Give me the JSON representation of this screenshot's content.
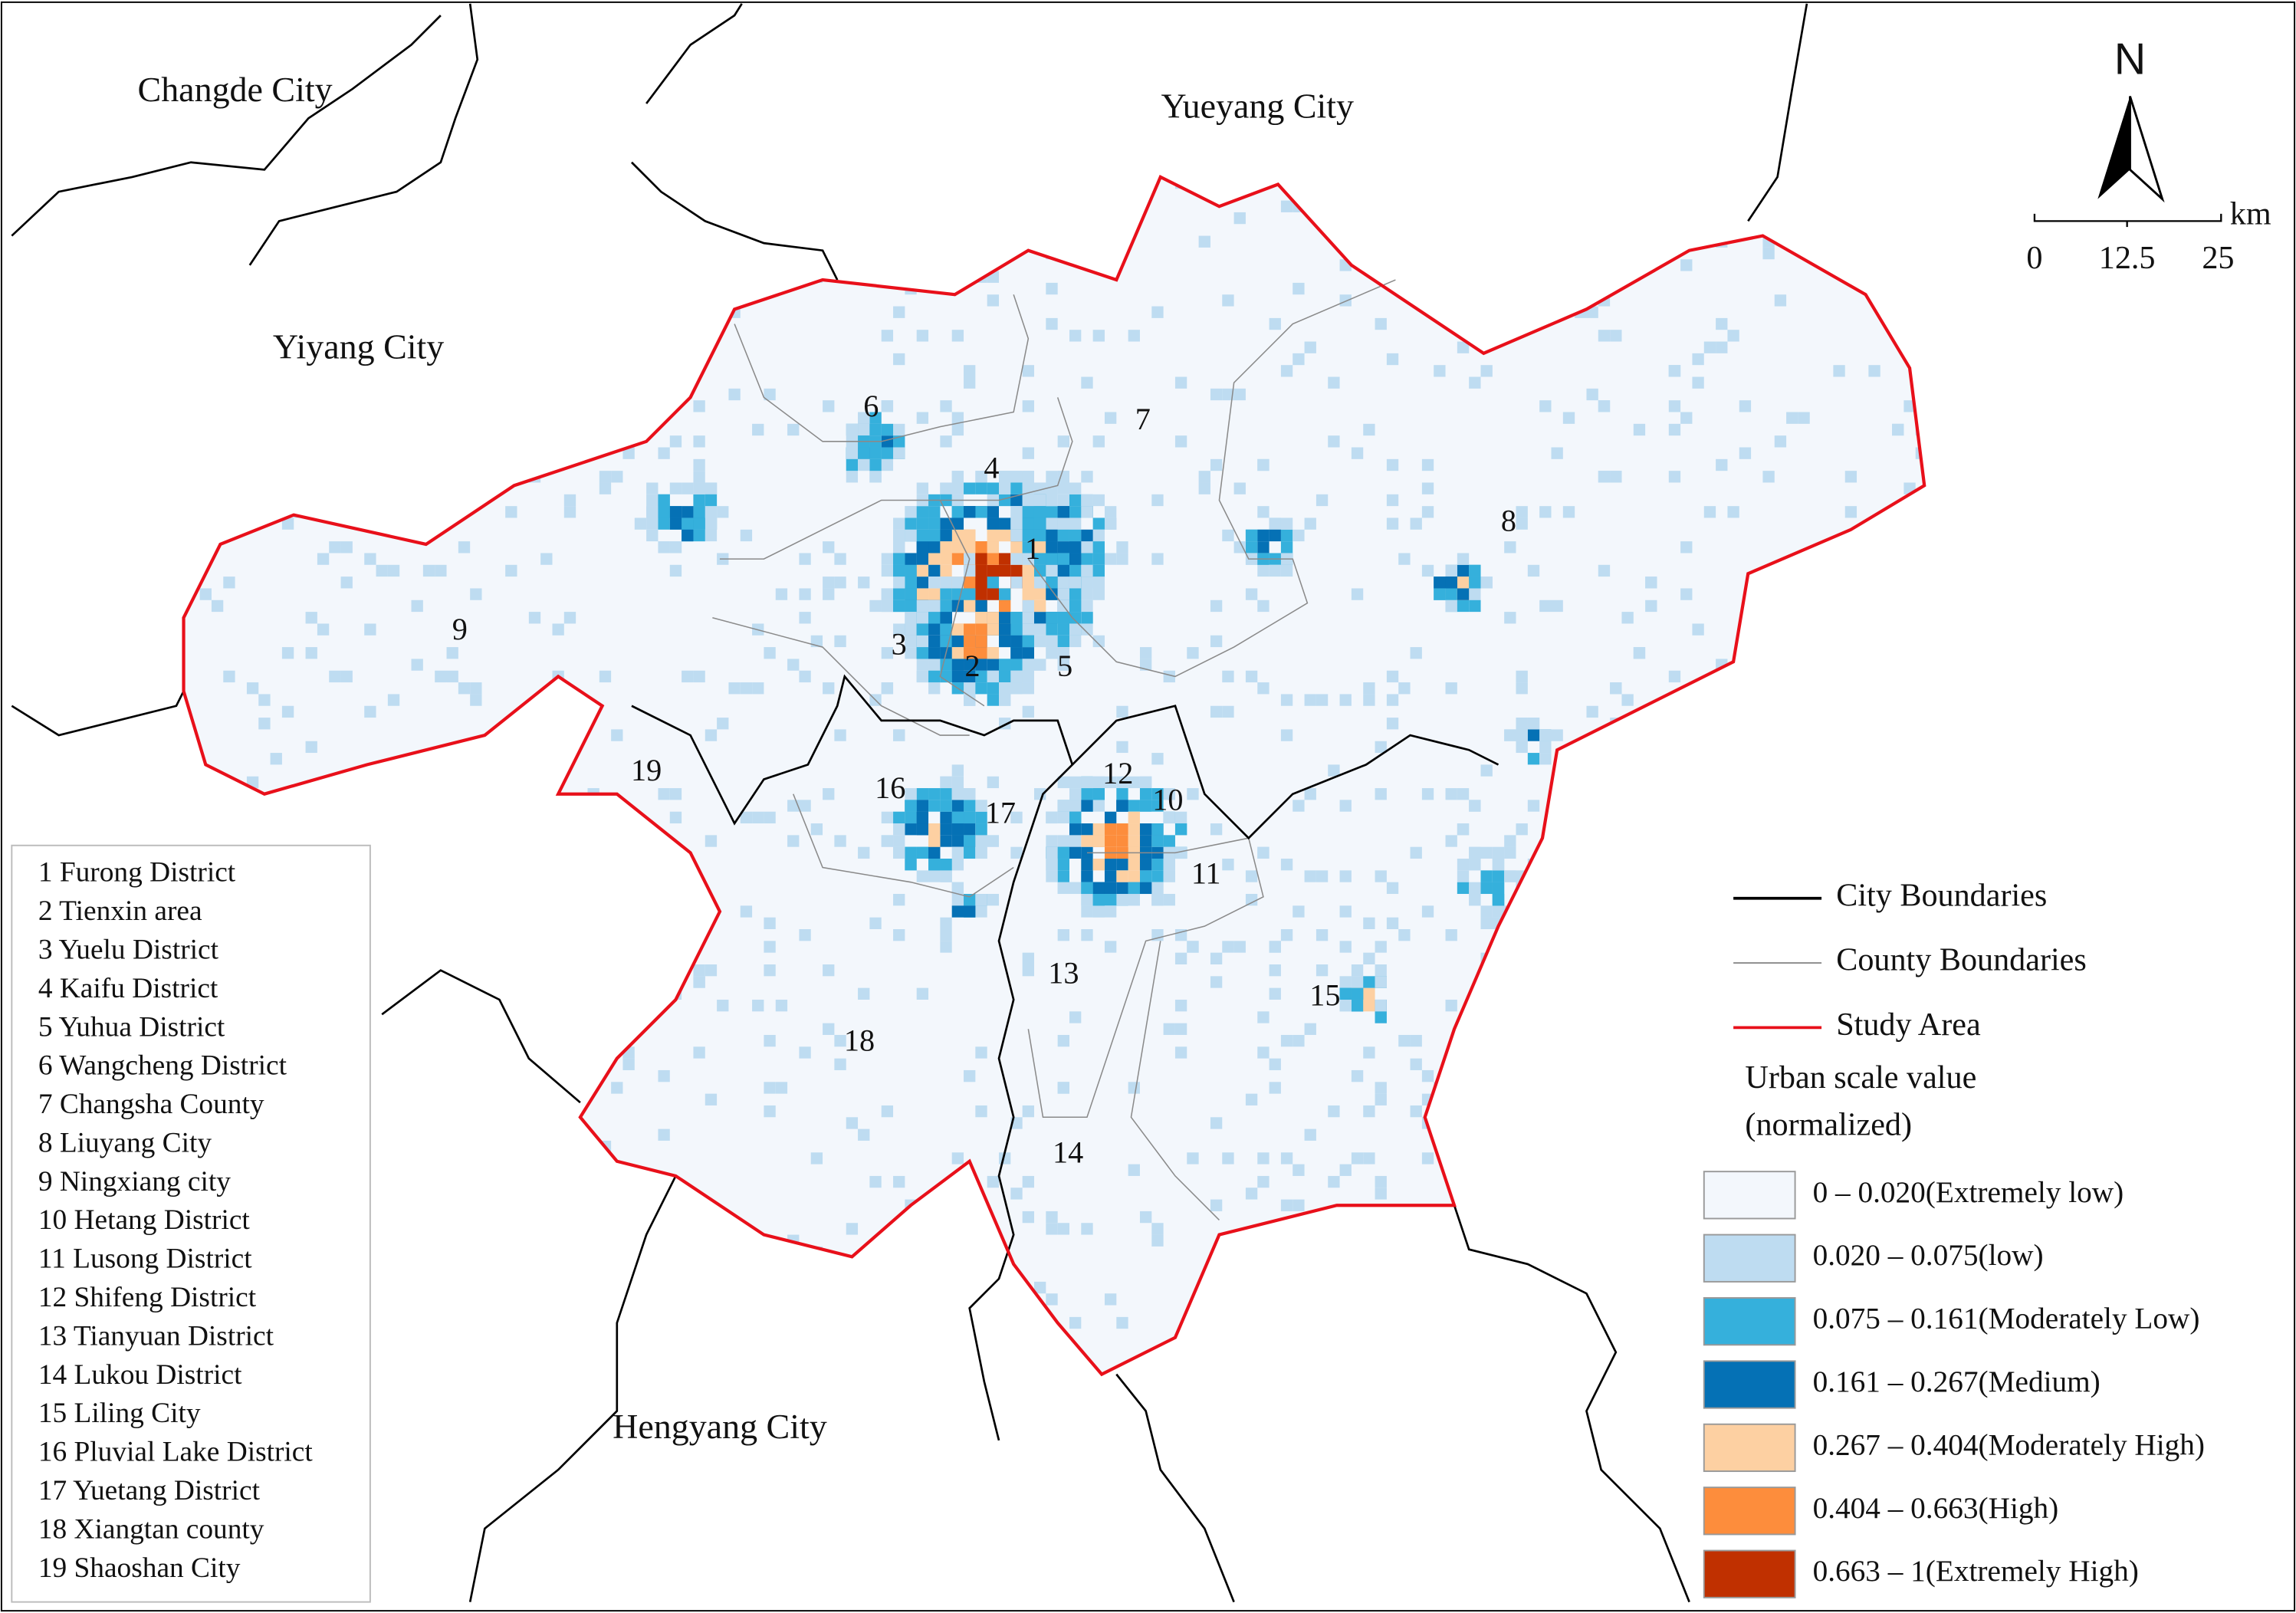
{
  "cities": [
    "Changde City",
    "Yueyang City",
    "Yiyang City",
    "Hengyang City"
  ],
  "map_labels": [
    "1",
    "2",
    "3",
    "4",
    "5",
    "6",
    "7",
    "8",
    "9",
    "10",
    "11",
    "12",
    "13",
    "14",
    "15",
    "16",
    "17",
    "18",
    "19"
  ],
  "district_list": [
    "1 Furong District",
    "2 Tienxin area",
    "3 Yuelu District",
    "4 Kaifu District",
    "5 Yuhua District",
    "6 Wangcheng District",
    "7 Changsha County",
    "8 Liuyang City",
    "9 Ningxiang city",
    "10 Hetang District",
    "11 Lusong District",
    "12 Shifeng District",
    "13 Tianyuan District",
    "14 Lukou District",
    "15 Liling City",
    "16 Pluvial Lake District",
    "17 Yuetang District",
    "18 Xiangtan county",
    "19 Shaoshan City"
  ],
  "north": "N",
  "scale_bar": {
    "ticks": [
      0,
      12.5,
      25
    ],
    "unit": "km"
  },
  "legend": {
    "lines": [
      {
        "label": "City Boundaries",
        "color": "#000000"
      },
      {
        "label": "County Boundaries",
        "color": "#8a8a8a"
      },
      {
        "label": "Study Area",
        "color": "#e8101a"
      }
    ],
    "title": [
      "Urban scale value",
      "(normalized)"
    ],
    "classes": [
      {
        "label": "0 – 0.020(Extremely low)",
        "color": "#f3f7fc"
      },
      {
        "label": "0.020 – 0.075(low)",
        "color": "#bedcf1"
      },
      {
        "label": "0.075 – 0.161(Moderately Low)",
        "color": "#35b0dc"
      },
      {
        "label": "0.161 – 0.267(Medium)",
        "color": "#0571b5"
      },
      {
        "label": "0.267 – 0.404(Moderately High)",
        "color": "#fdd0a2"
      },
      {
        "label": "0.404 – 0.663(High)",
        "color": "#fd8d3c"
      },
      {
        "label": "0.663 – 1(Extremely High)",
        "color": "#c03000"
      }
    ]
  }
}
